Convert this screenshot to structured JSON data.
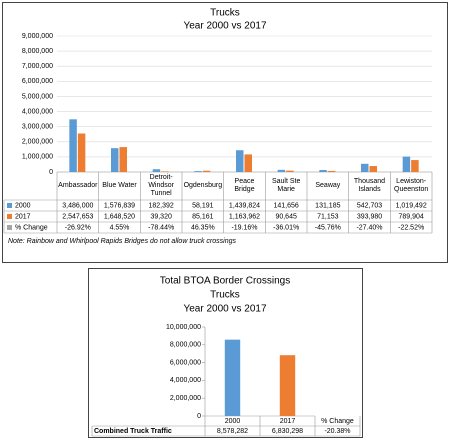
{
  "chart_data": [
    {
      "type": "bar",
      "title": "Trucks",
      "subtitle": "Year 2000 vs 2017",
      "categories": [
        "Ambassador",
        "Blue Water",
        "Detroit-Windsor Tunnel",
        "Ogdensburg",
        "Peace Bridge",
        "Sault Ste Marie",
        "Seaway",
        "Thousand Islands",
        "Lewiston-Queenston"
      ],
      "series": [
        {
          "name": "2000",
          "color": "#5b9bd5",
          "values": [
            3486000,
            1576839,
            182392,
            58191,
            1439824,
            141656,
            131185,
            542703,
            1019492
          ],
          "value_labels": [
            "3,486,000",
            "1,576,839",
            "182,392",
            "58,191",
            "1,439,824",
            "141,656",
            "131,185",
            "542,703",
            "1,019,492"
          ]
        },
        {
          "name": "2017",
          "color": "#ed7d31",
          "values": [
            2547653,
            1648520,
            39320,
            85161,
            1163962,
            90645,
            71153,
            393980,
            789904
          ],
          "value_labels": [
            "2,547,653",
            "1,648,520",
            "39,320",
            "85,161",
            "1,163,962",
            "90,645",
            "71,153",
            "393,980",
            "789,904"
          ]
        }
      ],
      "change": {
        "name": "% Change",
        "labels": [
          "-26.92%",
          "4.55%",
          "-78.44%",
          "46.35%",
          "-19.16%",
          "-36.01%",
          "-45.76%",
          "-27.40%",
          "-22.52%"
        ]
      },
      "ylim": [
        0,
        9000000
      ],
      "yticks": [
        0,
        {
          "value": 1000000,
          "label": "1,000,000"
        },
        {
          "value": 2000000,
          "label": "2,000,000"
        },
        {
          "value": 3000000,
          "label": "3,000,000"
        },
        {
          "value": 4000000,
          "label": "4,000,000"
        },
        {
          "value": 5000000,
          "label": "5,000,000"
        },
        {
          "value": 6000000,
          "label": "6,000,000"
        },
        {
          "value": 7000000,
          "label": "7,000,000"
        },
        {
          "value": 8000000,
          "label": "8,000,000"
        },
        {
          "value": 9000000,
          "label": "9,000,000"
        }
      ],
      "grid": true,
      "note": "Note:  Rainbow and Whirlpool Rapids Bridges do not allow truck crossings"
    },
    {
      "type": "bar",
      "title": "Total BTOA Border Crossings",
      "subtitle": "Trucks",
      "subtitle2": "Year 2000 vs 2017",
      "categories": [
        "2000",
        "2017"
      ],
      "row_name": "Combined Truck Traffic",
      "values": [
        8578282,
        6830298
      ],
      "value_labels": [
        "8,578,282",
        "6,830,298"
      ],
      "colors": [
        "#5b9bd5",
        "#ed7d31"
      ],
      "change_header": "% Change",
      "change_label": "-20.38%",
      "ylim": [
        0,
        10000000
      ],
      "yticks": [
        0,
        {
          "value": 2000000,
          "label": "2,000,000"
        },
        {
          "value": 4000000,
          "label": "4,000,000"
        },
        {
          "value": 6000000,
          "label": "6,000,000"
        },
        {
          "value": 8000000,
          "label": "8,000,000"
        },
        {
          "value": 10000000,
          "label": "10,000,000"
        }
      ],
      "grid": false
    }
  ]
}
